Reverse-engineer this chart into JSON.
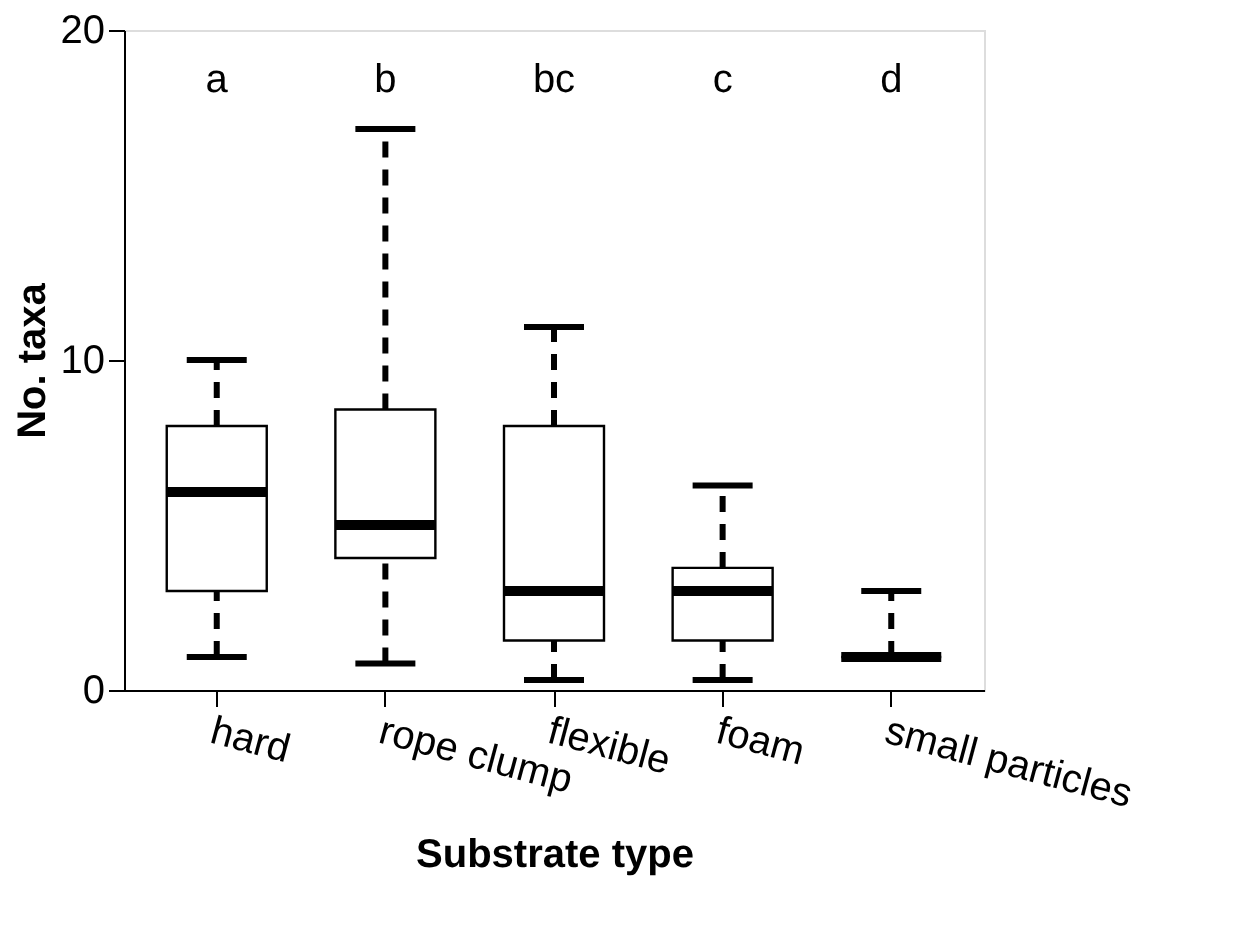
{
  "chart_data": {
    "type": "box",
    "xlabel": "Substrate type",
    "ylabel": "No. taxa",
    "categories": [
      "hard",
      "rope clump",
      "flexible",
      "foam",
      "small particles"
    ],
    "boxes": [
      {
        "low": 1,
        "q1": 3,
        "median": 6,
        "q3": 8,
        "high": 10
      },
      {
        "low": 0.8,
        "q1": 4,
        "median": 5,
        "q3": 8.5,
        "high": 17
      },
      {
        "low": 0.3,
        "q1": 1.5,
        "median": 3,
        "q3": 8,
        "high": 11
      },
      {
        "low": 0.3,
        "q1": 1.5,
        "median": 3,
        "q3": 3.7,
        "high": 6.2
      },
      {
        "low": 1,
        "q1": 1,
        "median": 1,
        "q3": 1,
        "high": 3
      }
    ],
    "ylim": [
      0,
      20
    ],
    "yticks": [
      0,
      10,
      20
    ],
    "grid": false,
    "line_style": "dashed",
    "annotations": [
      "a",
      "b",
      "bc",
      "c",
      "d"
    ]
  }
}
